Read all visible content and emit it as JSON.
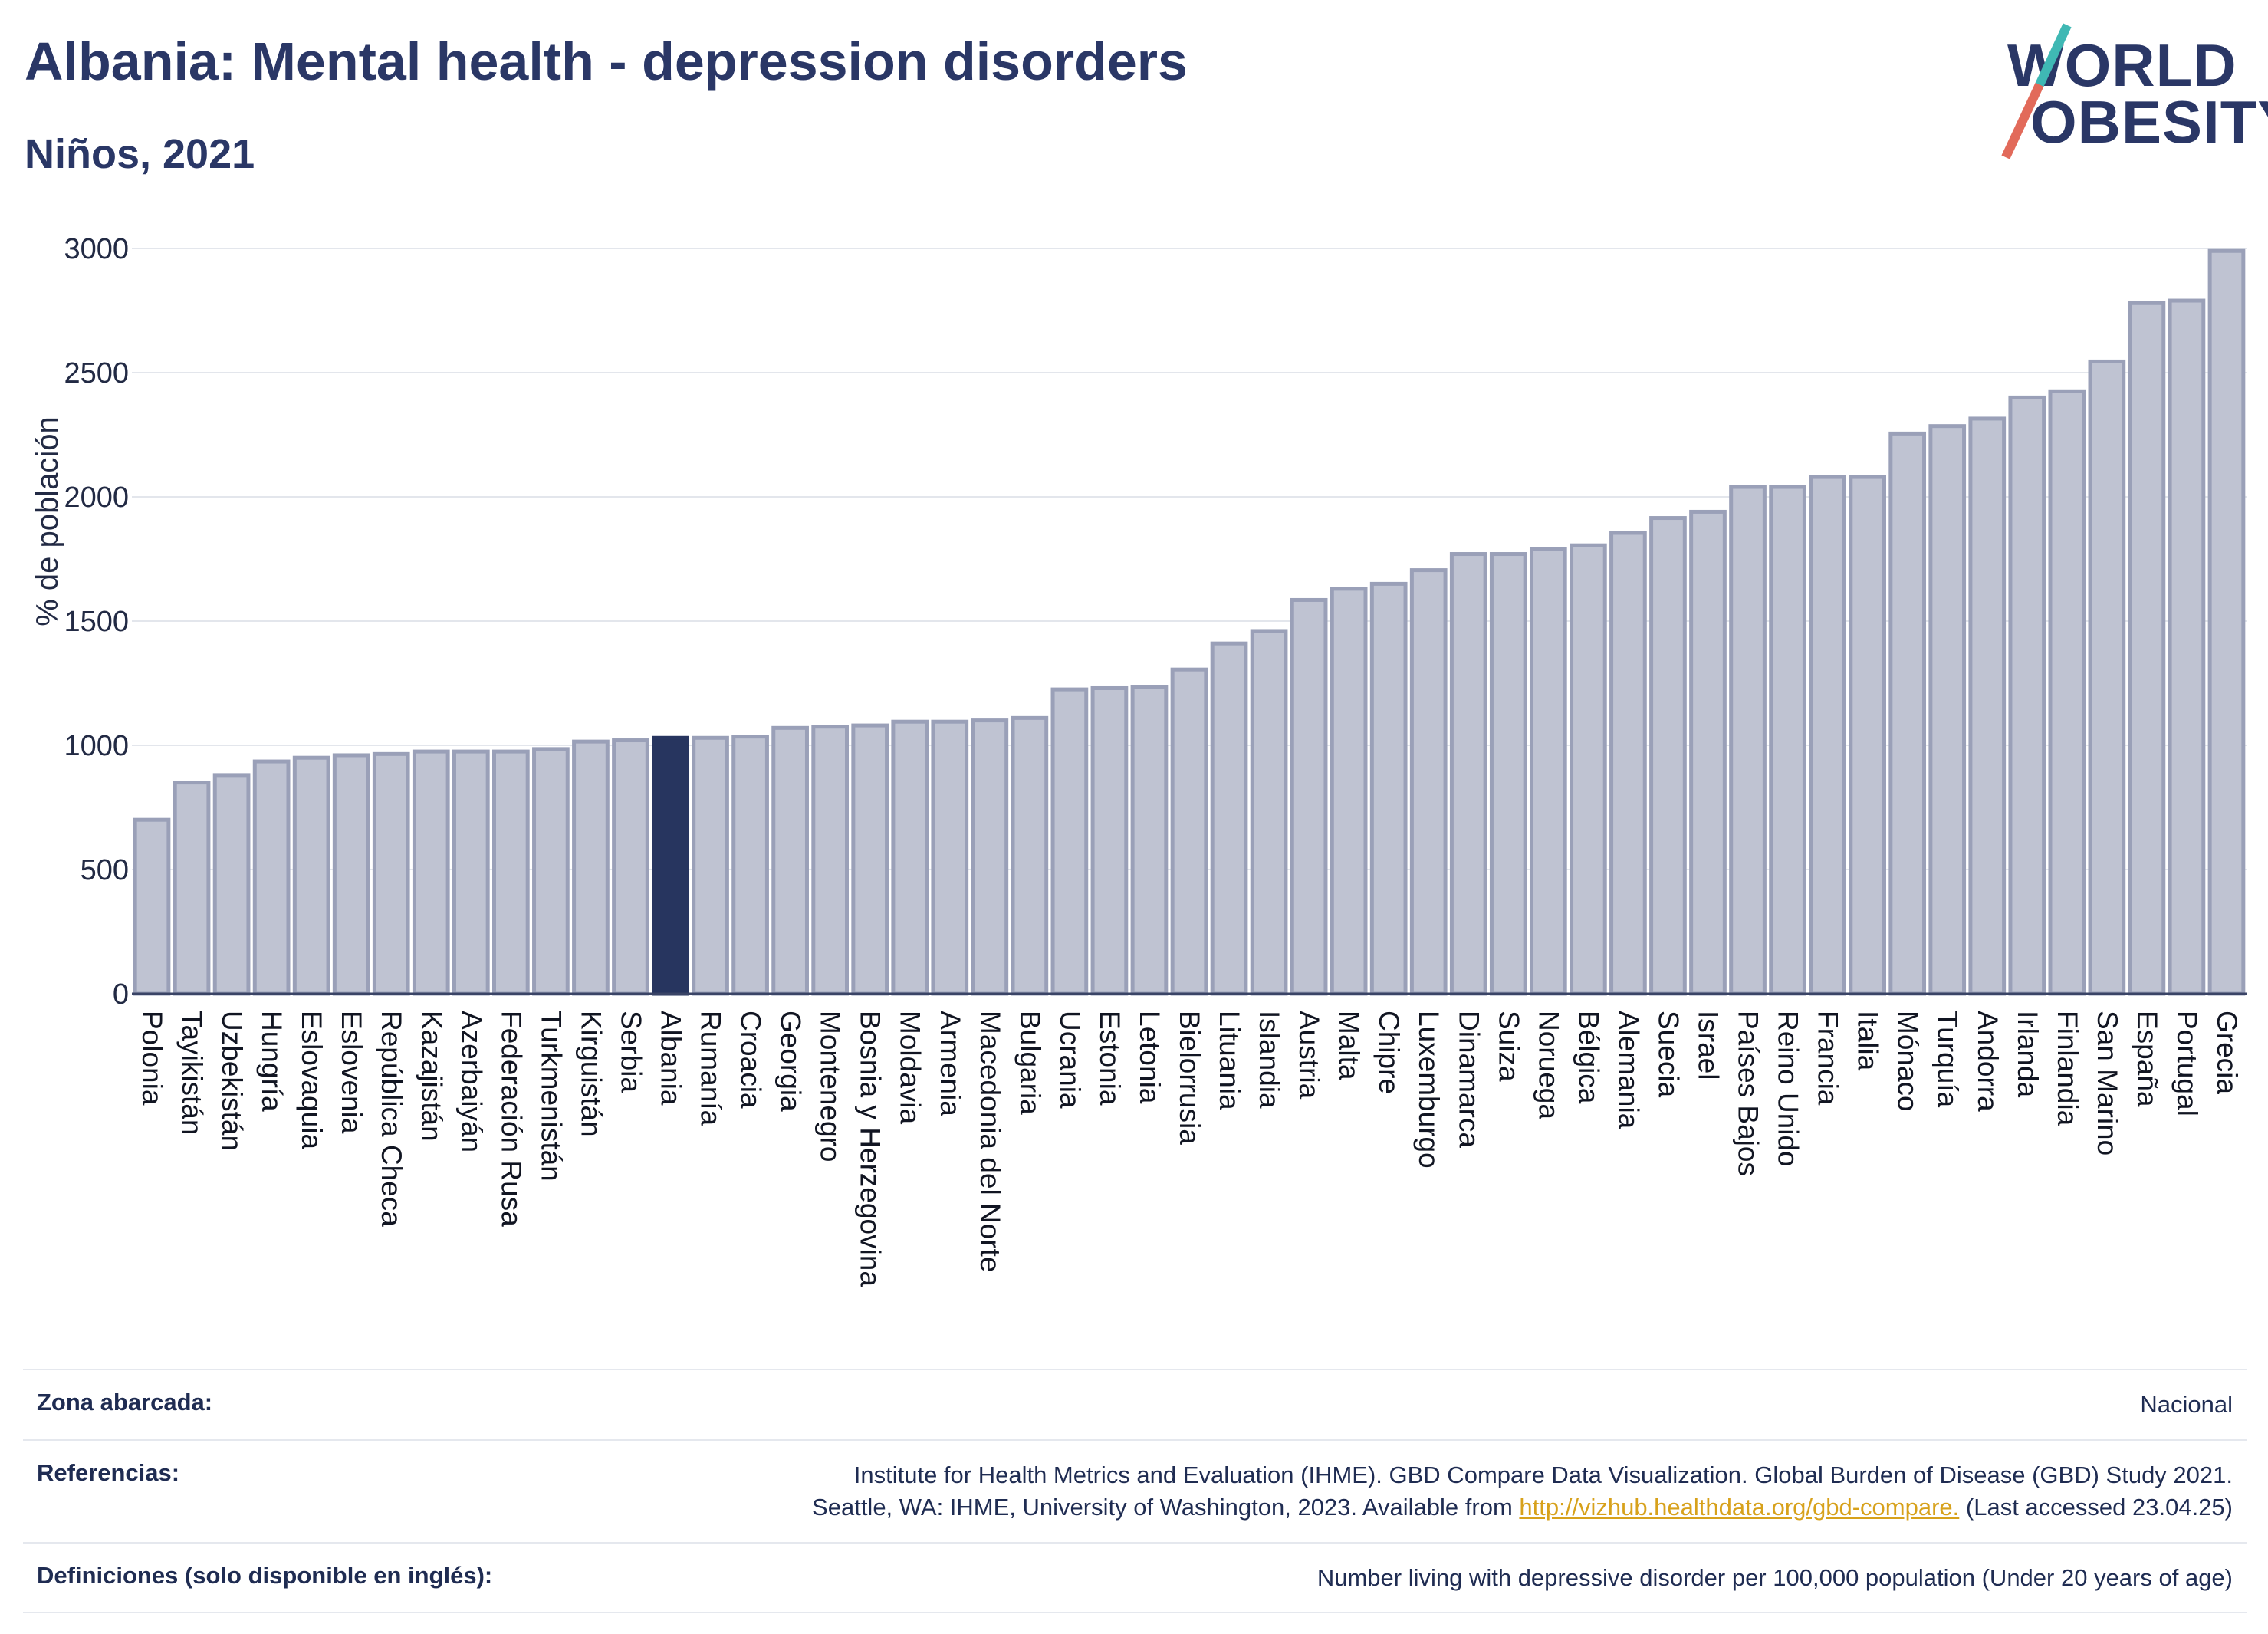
{
  "header": {
    "title": "Albania: Mental health - depression disorders",
    "subtitle": "Niños, 2021"
  },
  "logo": {
    "line1": "WORLD",
    "line2": "OBESITY"
  },
  "chart_data": {
    "type": "bar",
    "ylabel": "% de población",
    "ylim": [
      0,
      3000
    ],
    "yticks": [
      0,
      500,
      1000,
      1500,
      2000,
      2500,
      3000
    ],
    "highlight": "Albania",
    "colors": {
      "bar": "#bfc3d2",
      "bar_edge": "#9aa0b8",
      "highlight": "#27355f",
      "grid": "#e3e6ec",
      "axis": "#3a4466"
    },
    "categories": [
      "Polonia",
      "Tayikistán",
      "Uzbekistán",
      "Hungría",
      "Eslovaquia",
      "Eslovenia",
      "República Checa",
      "Kazajistán",
      "Azerbaiyán",
      "Federación Rusa",
      "Turkmenistán",
      "Kirguistán",
      "Serbia",
      "Albania",
      "Rumanía",
      "Croacia",
      "Georgia",
      "Montenegro",
      "Bosnia y Herzegovina",
      "Moldavia",
      "Armenia",
      "Macedonia del Norte",
      "Bulgaria",
      "Ucrania",
      "Estonia",
      "Letonia",
      "Bielorrusia",
      "Lituania",
      "Islandia",
      "Austria",
      "Malta",
      "Chipre",
      "Luxemburgo",
      "Dinamarca",
      "Suiza",
      "Noruega",
      "Bélgica",
      "Alemania",
      "Suecia",
      "Israel",
      "Países Bajos",
      "Reino Unido",
      "Francia",
      "Italia",
      "Mónaco",
      "Turquía",
      "Andorra",
      "Irlanda",
      "Finlandia",
      "San Marino",
      "España",
      "Portugal",
      "Grecia"
    ],
    "values": [
      700,
      850,
      880,
      935,
      950,
      960,
      965,
      975,
      975,
      975,
      985,
      1015,
      1020,
      1030,
      1030,
      1035,
      1070,
      1075,
      1080,
      1095,
      1095,
      1100,
      1110,
      1225,
      1230,
      1235,
      1305,
      1410,
      1460,
      1585,
      1630,
      1650,
      1705,
      1770,
      1770,
      1790,
      1805,
      1855,
      1915,
      1940,
      2040,
      2040,
      2080,
      2080,
      2255,
      2285,
      2315,
      2400,
      2425,
      2545,
      2780,
      2790,
      2990
    ]
  },
  "footer": {
    "zona_label": "Zona abarcada:",
    "zona_value": "Nacional",
    "ref_label": "Referencias:",
    "ref_line1": "Institute for Health Metrics and Evaluation (IHME). GBD Compare Data Visualization. Global Burden of Disease (GBD) Study 2021.",
    "ref_line2_pre": "Seattle, WA: IHME, University of Washington, 2023. Available from ",
    "ref_link": "http://vizhub.healthdata.org/gbd-compare.",
    "ref_line2_post": " (Last accessed 23.04.25)",
    "def_label": "Definiciones (solo disponible en inglés):",
    "def_value": "Number living with depressive disorder per 100,000 population (Under 20 years of age)"
  }
}
